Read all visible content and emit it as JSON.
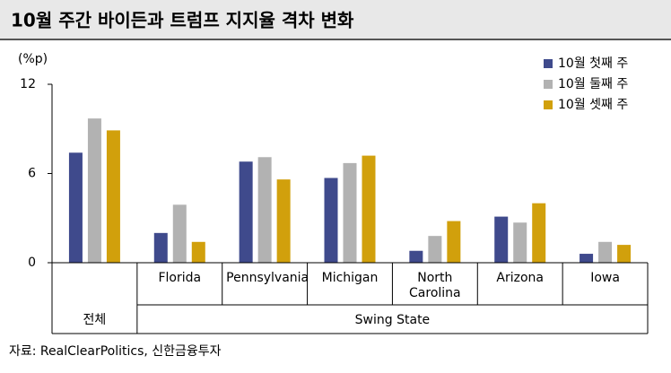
{
  "chart_data": {
    "type": "bar",
    "title": "10월 주간 바이든과 트럼프 지지율 격차 변화",
    "unit_label": "(%p)",
    "categories": [
      "",
      "Florida",
      "Pennsylvania",
      "Michigan",
      "North Carolina",
      "Arizona",
      "Iowa"
    ],
    "group_labels": [
      "전체",
      "Swing State"
    ],
    "series": [
      {
        "name": "10월 첫째 주",
        "color": "#3f4a8c",
        "values": [
          7.4,
          2.0,
          6.8,
          5.7,
          0.8,
          3.1,
          0.6
        ]
      },
      {
        "name": "10월 둘째 주",
        "color": "#b2b2b2",
        "values": [
          9.7,
          3.9,
          7.1,
          6.7,
          1.8,
          2.7,
          1.4
        ]
      },
      {
        "name": "10월 셋째 주",
        "color": "#d1a00c",
        "values": [
          8.9,
          1.4,
          5.6,
          7.2,
          2.8,
          4.0,
          1.2
        ]
      }
    ],
    "ylim": [
      0,
      12
    ],
    "yticks": [
      0,
      6,
      12
    ],
    "legend": "top-right",
    "source": "자료: RealClearPolitics, 신한금융투자"
  }
}
